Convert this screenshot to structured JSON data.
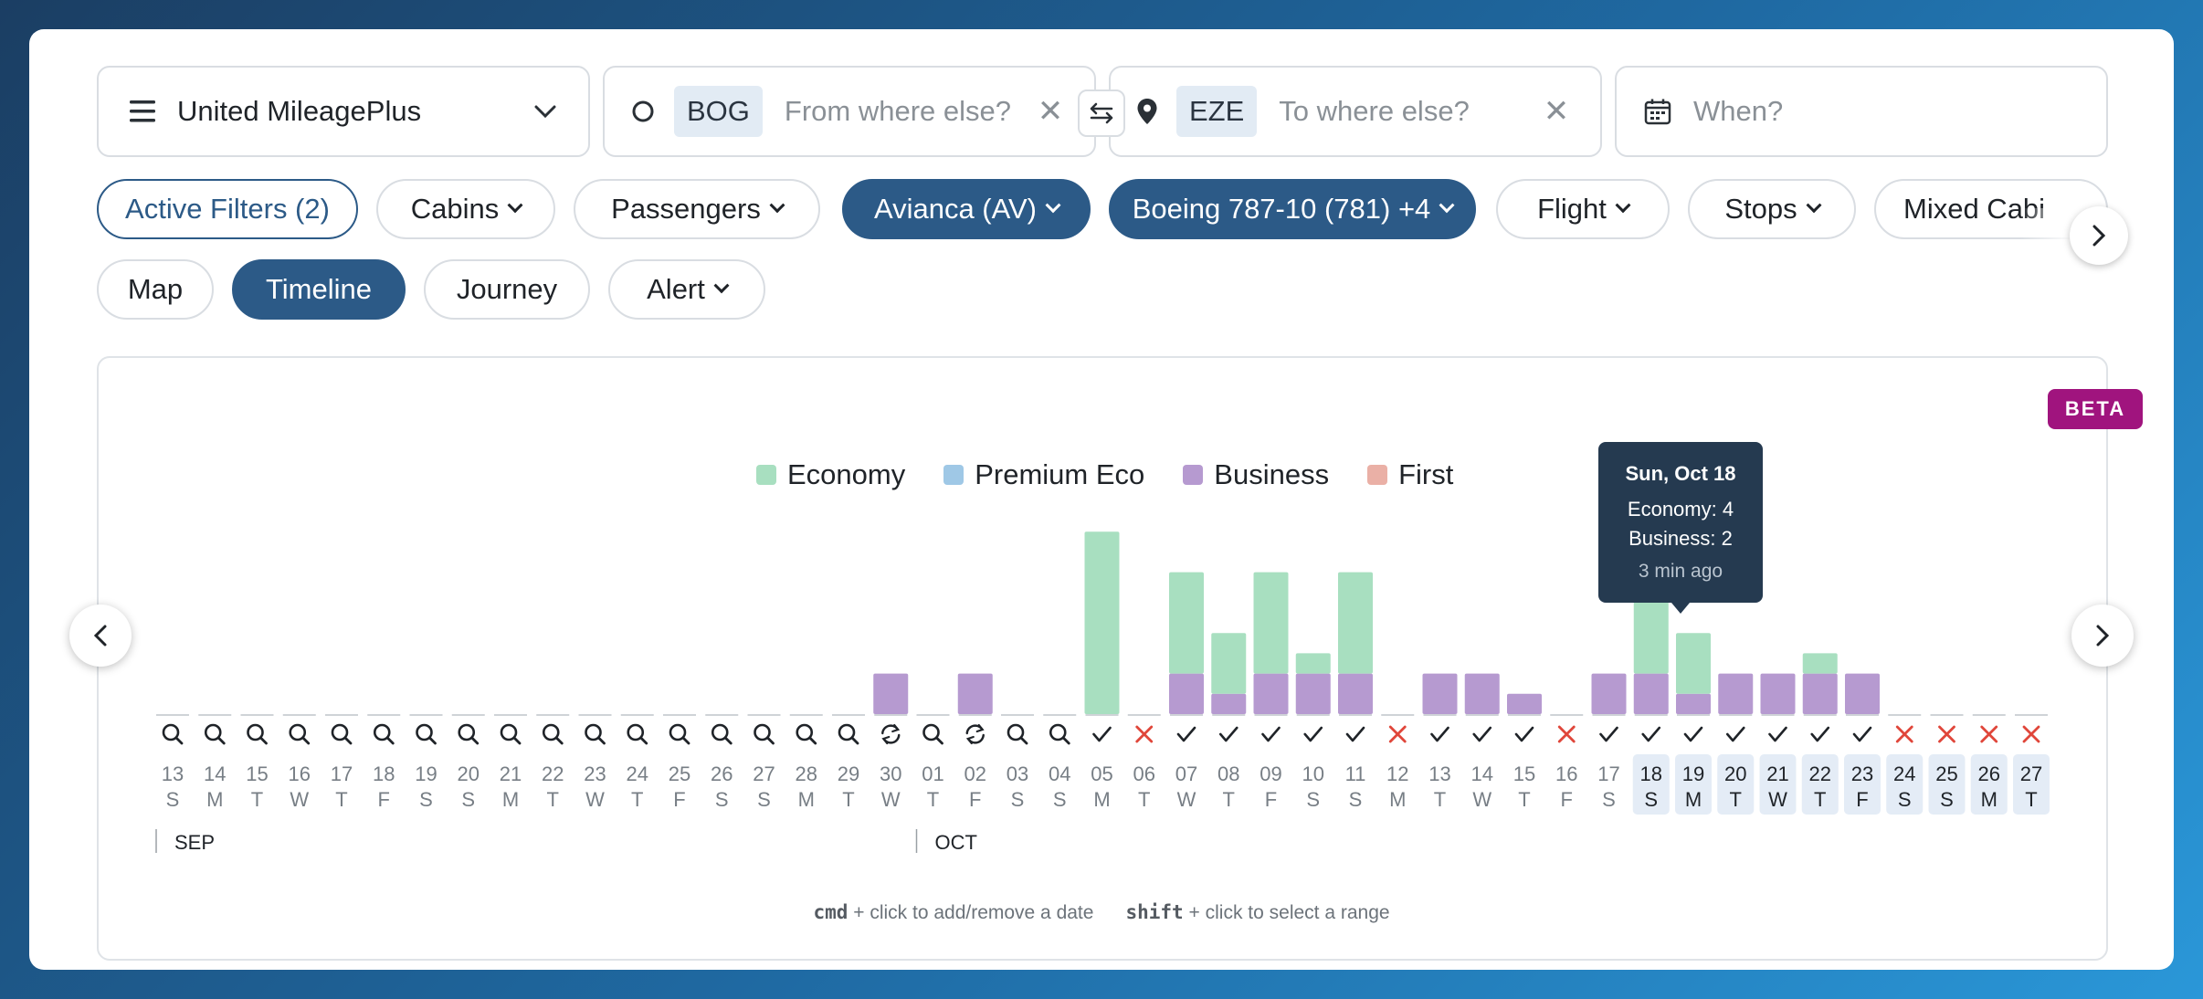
{
  "search": {
    "program": "United MileagePlus",
    "from_code": "BOG",
    "from_placeholder": "From where else?",
    "to_code": "EZE",
    "to_placeholder": "To where else?",
    "when_placeholder": "When?"
  },
  "filters": [
    {
      "name": "filter-active",
      "label": "Active Filters (2)",
      "style": "outline",
      "chevron": false
    },
    {
      "name": "filter-cabins",
      "label": "Cabins",
      "style": "normal",
      "chevron": true
    },
    {
      "name": "filter-passengers",
      "label": "Passengers",
      "style": "normal",
      "chevron": true
    },
    {
      "name": "filter-airline",
      "label": "Avianca (AV)",
      "style": "active",
      "chevron": true
    },
    {
      "name": "filter-aircraft",
      "label": "Boeing 787-10 (781) +4",
      "style": "active",
      "chevron": true
    },
    {
      "name": "filter-flight",
      "label": "Flight",
      "style": "normal",
      "chevron": true
    },
    {
      "name": "filter-stops",
      "label": "Stops",
      "style": "normal",
      "chevron": true
    },
    {
      "name": "filter-mixed-cabin",
      "label": "Mixed Cabi",
      "style": "normal",
      "chevron": false
    }
  ],
  "views": [
    {
      "name": "view-map",
      "label": "Map",
      "style": "normal",
      "chevron": false
    },
    {
      "name": "view-timeline",
      "label": "Timeline",
      "style": "active",
      "chevron": false
    },
    {
      "name": "view-journey",
      "label": "Journey",
      "style": "normal",
      "chevron": false
    },
    {
      "name": "view-alert",
      "label": "Alert",
      "style": "normal",
      "chevron": true
    }
  ],
  "badge": "BETA",
  "legend": [
    {
      "label": "Economy",
      "color": "#a8dfc0"
    },
    {
      "label": "Premium Eco",
      "color": "#9fc8e6"
    },
    {
      "label": "Business",
      "color": "#b69ad0"
    },
    {
      "label": "First",
      "color": "#eab0a6"
    }
  ],
  "tooltip": {
    "date": "Sun, Oct 18",
    "economy": "Economy: 4",
    "business": "Business: 2",
    "age": "3 min ago"
  },
  "colors": {
    "economy": "#a8dfc0",
    "business": "#b69ad0",
    "accent": "#2c5a87",
    "error": "#e0463a",
    "selected_bg": "#e4ecf6"
  },
  "chart_data": {
    "type": "bar",
    "stacked": true,
    "series_names": [
      "Economy",
      "Business"
    ],
    "days": [
      {
        "d": "13",
        "w": "S",
        "s": "search",
        "e": 0,
        "b": 0
      },
      {
        "d": "14",
        "w": "M",
        "s": "search",
        "e": 0,
        "b": 0
      },
      {
        "d": "15",
        "w": "T",
        "s": "search",
        "e": 0,
        "b": 0
      },
      {
        "d": "16",
        "w": "W",
        "s": "search",
        "e": 0,
        "b": 0
      },
      {
        "d": "17",
        "w": "T",
        "s": "search",
        "e": 0,
        "b": 0
      },
      {
        "d": "18",
        "w": "F",
        "s": "search",
        "e": 0,
        "b": 0
      },
      {
        "d": "19",
        "w": "S",
        "s": "search",
        "e": 0,
        "b": 0
      },
      {
        "d": "20",
        "w": "S",
        "s": "search",
        "e": 0,
        "b": 0
      },
      {
        "d": "21",
        "w": "M",
        "s": "search",
        "e": 0,
        "b": 0
      },
      {
        "d": "22",
        "w": "T",
        "s": "search",
        "e": 0,
        "b": 0
      },
      {
        "d": "23",
        "w": "W",
        "s": "search",
        "e": 0,
        "b": 0
      },
      {
        "d": "24",
        "w": "T",
        "s": "search",
        "e": 0,
        "b": 0
      },
      {
        "d": "25",
        "w": "F",
        "s": "search",
        "e": 0,
        "b": 0
      },
      {
        "d": "26",
        "w": "S",
        "s": "search",
        "e": 0,
        "b": 0
      },
      {
        "d": "27",
        "w": "S",
        "s": "search",
        "e": 0,
        "b": 0
      },
      {
        "d": "28",
        "w": "M",
        "s": "search",
        "e": 0,
        "b": 0
      },
      {
        "d": "29",
        "w": "T",
        "s": "search",
        "e": 0,
        "b": 0
      },
      {
        "d": "30",
        "w": "W",
        "s": "refresh",
        "e": 0,
        "b": 2
      },
      {
        "d": "01",
        "w": "T",
        "s": "search",
        "e": 0,
        "b": 0
      },
      {
        "d": "02",
        "w": "F",
        "s": "refresh",
        "e": 0,
        "b": 2
      },
      {
        "d": "03",
        "w": "S",
        "s": "search",
        "e": 0,
        "b": 0
      },
      {
        "d": "04",
        "w": "S",
        "s": "search",
        "e": 0,
        "b": 0
      },
      {
        "d": "05",
        "w": "M",
        "s": "check",
        "e": 9,
        "b": 0
      },
      {
        "d": "06",
        "w": "T",
        "s": "x",
        "e": 0,
        "b": 0
      },
      {
        "d": "07",
        "w": "W",
        "s": "check",
        "e": 5,
        "b": 2
      },
      {
        "d": "08",
        "w": "T",
        "s": "check",
        "e": 3,
        "b": 1
      },
      {
        "d": "09",
        "w": "F",
        "s": "check",
        "e": 5,
        "b": 2
      },
      {
        "d": "10",
        "w": "S",
        "s": "check",
        "e": 1,
        "b": 2
      },
      {
        "d": "11",
        "w": "S",
        "s": "check",
        "e": 5,
        "b": 2
      },
      {
        "d": "12",
        "w": "M",
        "s": "x",
        "e": 0,
        "b": 0
      },
      {
        "d": "13",
        "w": "T",
        "s": "check",
        "e": 0,
        "b": 2
      },
      {
        "d": "14",
        "w": "W",
        "s": "check",
        "e": 0,
        "b": 2
      },
      {
        "d": "15",
        "w": "T",
        "s": "check",
        "e": 0,
        "b": 1
      },
      {
        "d": "16",
        "w": "F",
        "s": "x",
        "e": 0,
        "b": 0
      },
      {
        "d": "17",
        "w": "S",
        "s": "check",
        "e": 0,
        "b": 2
      },
      {
        "d": "18",
        "w": "S",
        "s": "check",
        "e": 4,
        "b": 2,
        "sel": true
      },
      {
        "d": "19",
        "w": "M",
        "s": "check",
        "e": 3,
        "b": 1,
        "sel": true
      },
      {
        "d": "20",
        "w": "T",
        "s": "check",
        "e": 0,
        "b": 2,
        "sel": true
      },
      {
        "d": "21",
        "w": "W",
        "s": "check",
        "e": 0,
        "b": 2,
        "sel": true
      },
      {
        "d": "22",
        "w": "T",
        "s": "check",
        "e": 1,
        "b": 2,
        "sel": true
      },
      {
        "d": "23",
        "w": "F",
        "s": "check",
        "e": 0,
        "b": 2,
        "sel": true
      },
      {
        "d": "24",
        "w": "S",
        "s": "x",
        "e": 0,
        "b": 0,
        "sel": true
      },
      {
        "d": "25",
        "w": "S",
        "s": "x",
        "e": 0,
        "b": 0,
        "sel": true
      },
      {
        "d": "26",
        "w": "M",
        "s": "x",
        "e": 0,
        "b": 0,
        "sel": true
      },
      {
        "d": "27",
        "w": "T",
        "s": "x",
        "e": 0,
        "b": 0,
        "sel": true
      }
    ],
    "months": [
      {
        "label": "SEP",
        "start_index": 0
      },
      {
        "label": "OCT",
        "start_index": 18
      }
    ]
  },
  "hint": {
    "key1": "cmd",
    "text1": "+ click to add/remove a date",
    "key2": "shift",
    "text2": "+ click to select a range"
  }
}
